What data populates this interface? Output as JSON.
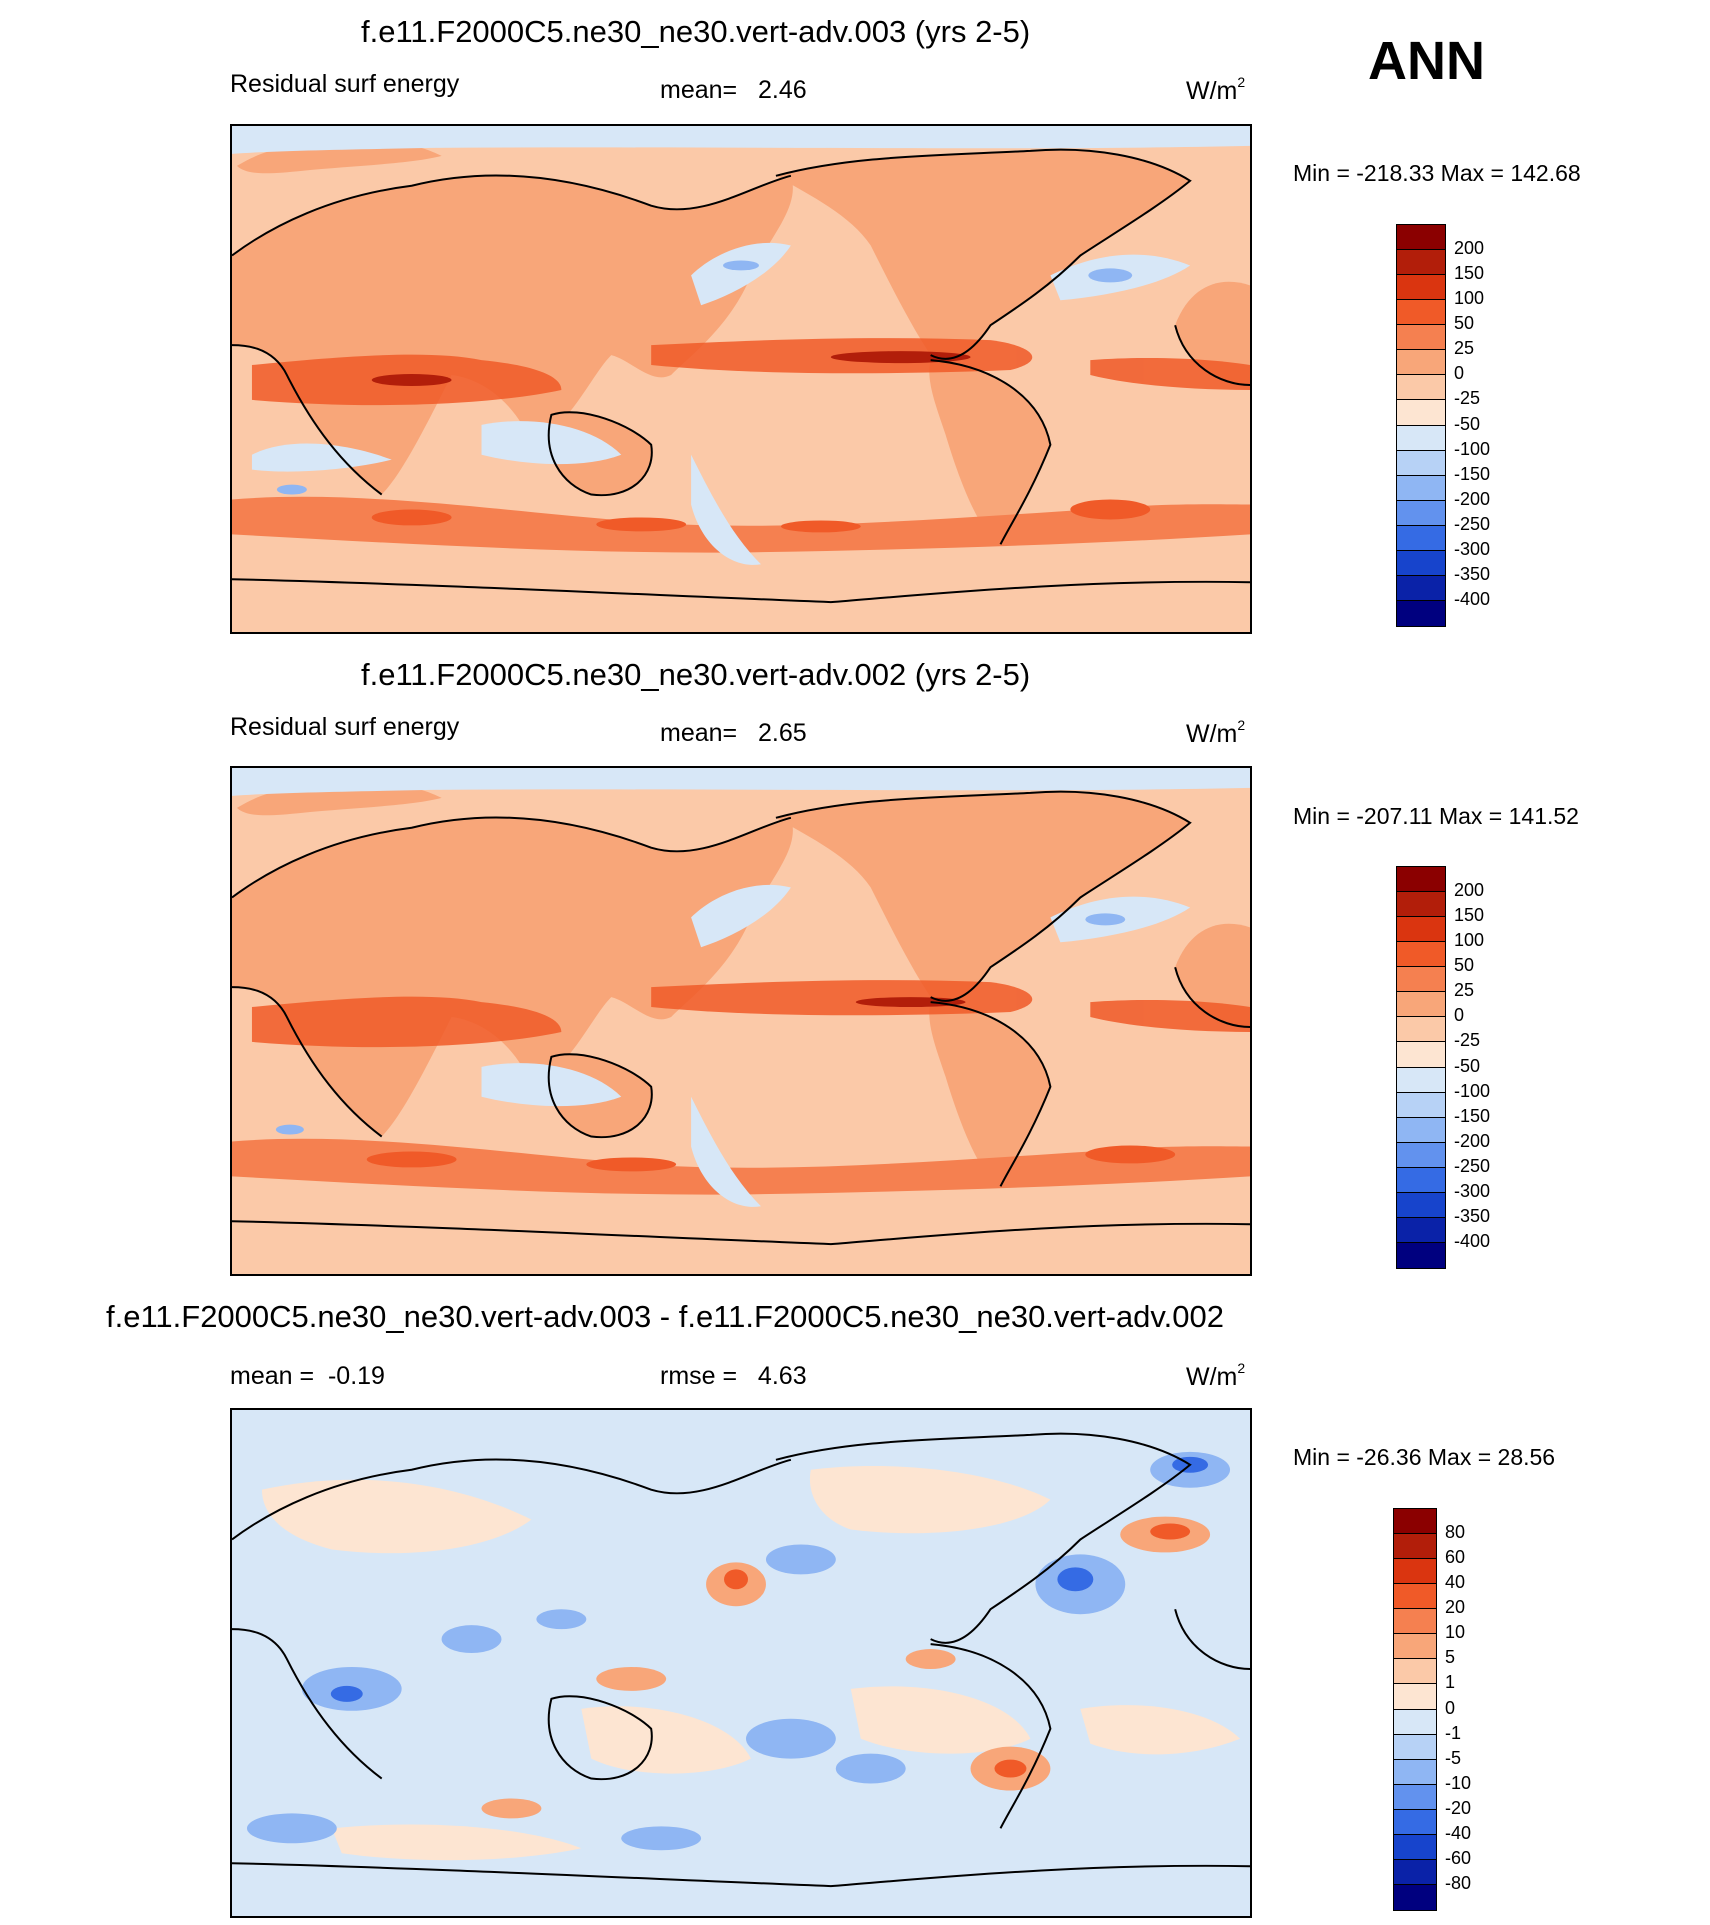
{
  "season": "ANN",
  "panels": [
    {
      "id": "case1",
      "title": "f.e11.F2000C5.ne30_ne30.vert-adv.003 (yrs 2-5)",
      "left_label": "Residual surf energy",
      "center_label": "mean=   2.46",
      "units": "W/m",
      "units_sup": "2",
      "minmax": "Min = -218.33 Max = 142.68",
      "field": "mean"
    },
    {
      "id": "case2",
      "title": "f.e11.F2000C5.ne30_ne30.vert-adv.002 (yrs 2-5)",
      "left_label": "Residual surf energy",
      "center_label": "mean=   2.65",
      "units": "W/m",
      "units_sup": "2",
      "minmax": "Min = -207.11 Max = 141.52",
      "field": "mean"
    },
    {
      "id": "diff",
      "title": "f.e11.F2000C5.ne30_ne30.vert-adv.003 - f.e11.F2000C5.ne30_ne30.vert-adv.002",
      "left_label": "mean =  -0.19",
      "center_label": "rmse =   4.63",
      "units": "W/m",
      "units_sup": "2",
      "minmax": "Min = -26.36 Max =  28.56",
      "field": "diff"
    }
  ],
  "colorbars": {
    "mean": {
      "labels": [
        "200",
        "150",
        "100",
        "50",
        "25",
        "0",
        "-25",
        "-50",
        "-100",
        "-150",
        "-200",
        "-250",
        "-300",
        "-350",
        "-400"
      ],
      "colors": [
        "#8b0000",
        "#b21e0a",
        "#da3510",
        "#f05a28",
        "#f58050",
        "#f8a679",
        "#fbc9a8",
        "#fde5d2",
        "#d7e7f7",
        "#b7d2f6",
        "#8fb6f3",
        "#6292ee",
        "#356be4",
        "#1744cc",
        "#0a22a8",
        "#00007f"
      ]
    },
    "diff": {
      "labels": [
        "80",
        "60",
        "40",
        "20",
        "10",
        "5",
        "1",
        "0",
        "-1",
        "-5",
        "-10",
        "-20",
        "-40",
        "-60",
        "-80"
      ],
      "colors": [
        "#8b0000",
        "#b21e0a",
        "#da3510",
        "#f05a28",
        "#f58050",
        "#f8a679",
        "#fbc9a8",
        "#fde5d2",
        "#d7e7f7",
        "#b7d2f6",
        "#8fb6f3",
        "#6292ee",
        "#356be4",
        "#1744cc",
        "#0a22a8",
        "#00007f"
      ]
    }
  }
}
